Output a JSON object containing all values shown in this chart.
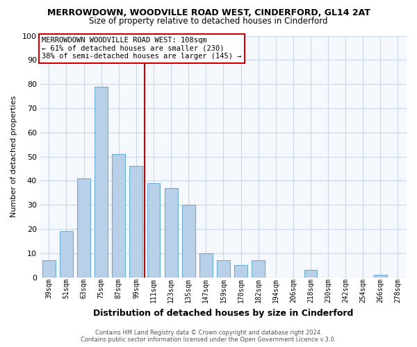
{
  "title1": "MERROWDOWN, WOODVILLE ROAD WEST, CINDERFORD, GL14 2AT",
  "title2": "Size of property relative to detached houses in Cinderford",
  "xlabel": "Distribution of detached houses by size in Cinderford",
  "ylabel": "Number of detached properties",
  "bar_color": "#b8d0e8",
  "bar_edge_color": "#6baed6",
  "categories": [
    "39sqm",
    "51sqm",
    "63sqm",
    "75sqm",
    "87sqm",
    "99sqm",
    "111sqm",
    "123sqm",
    "135sqm",
    "147sqm",
    "159sqm",
    "170sqm",
    "182sqm",
    "194sqm",
    "206sqm",
    "218sqm",
    "230sqm",
    "242sqm",
    "254sqm",
    "266sqm",
    "278sqm"
  ],
  "values": [
    7,
    19,
    41,
    79,
    51,
    46,
    39,
    37,
    30,
    10,
    7,
    5,
    7,
    0,
    0,
    3,
    0,
    0,
    0,
    1,
    0
  ],
  "ylim": [
    0,
    100
  ],
  "yticks": [
    0,
    10,
    20,
    30,
    40,
    50,
    60,
    70,
    80,
    90,
    100
  ],
  "vline_index": 6,
  "vline_color": "#cc0000",
  "annotation_line1": "MERROWDOWN WOODVILLE ROAD WEST: 108sqm",
  "annotation_line2": "← 61% of detached houses are smaller (230)",
  "annotation_line3": "38% of semi-detached houses are larger (145) →",
  "footer1": "Contains HM Land Registry data © Crown copyright and database right 2024.",
  "footer2": "Contains public sector information licensed under the Open Government Licence v.3.0.",
  "bg_color": "#ffffff",
  "plot_bg_color": "#f5f8fc",
  "grid_color": "#c8d8ea"
}
